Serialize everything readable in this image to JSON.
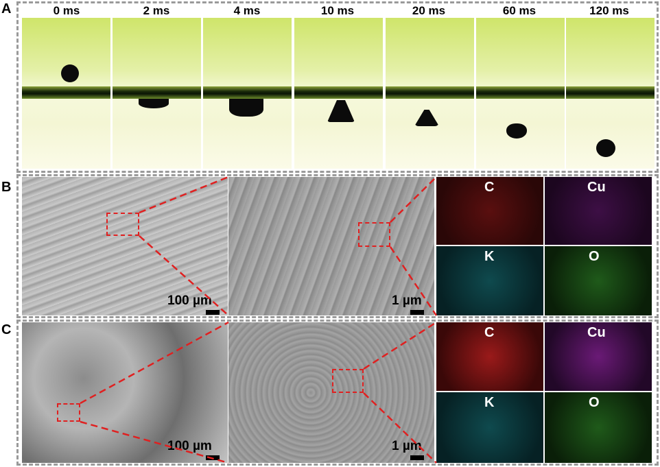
{
  "panels": {
    "a": "A",
    "b": "B",
    "c": "C"
  },
  "time_labels": [
    "0 ms",
    "2 ms",
    "4 ms",
    "10 ms",
    "20 ms",
    "60 ms",
    "120 ms"
  ],
  "scale_bars": {
    "low_mag": "100 µm",
    "high_mag": "1 µm"
  },
  "eds_elements": [
    "C",
    "Cu",
    "K",
    "O"
  ],
  "colors": {
    "zoom_box": "#e02020",
    "frame_border": "#9a9a9a"
  }
}
